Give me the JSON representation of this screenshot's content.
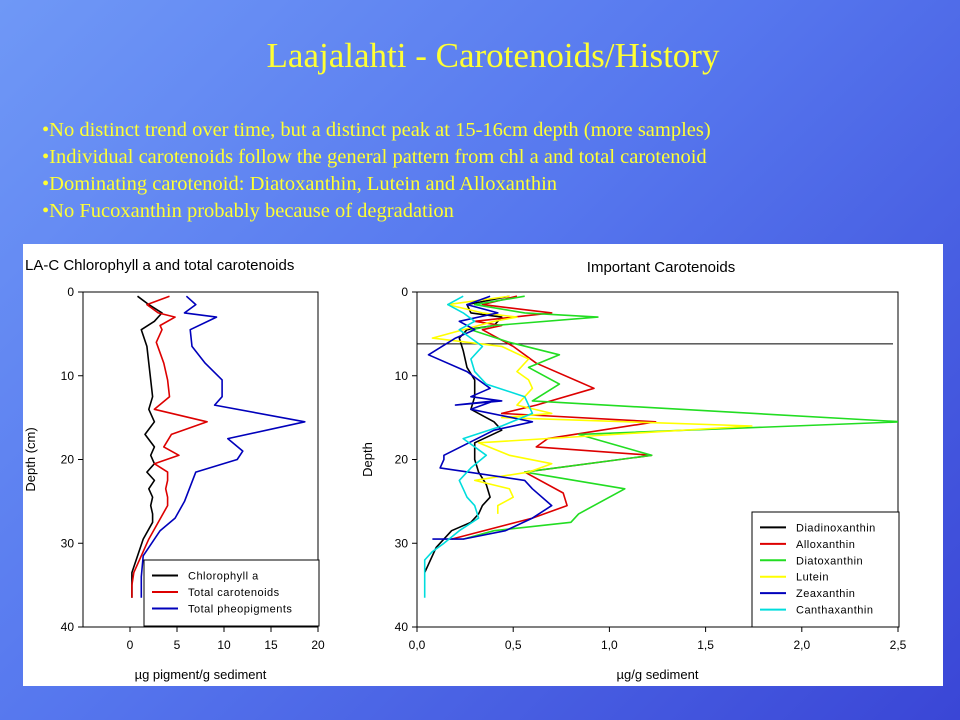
{
  "slide": {
    "title": "Laajalahti - Carotenoids/History",
    "bullets": [
      "•No distinct trend over time, but a distinct peak at 15-16cm depth (more samples)",
      "•Individual carotenoids follow the general pattern from chl a and total carotenoid",
      "•Dominating carotenoid: Diatoxanthin, Lutein and Alloxanthin",
      "•No Fucoxanthin probably because of degradation"
    ]
  },
  "chart_data": [
    {
      "type": "line",
      "orientation": "depth-profile",
      "title": "LA-C Chlorophyll a and total carotenoids",
      "xlabel": "µg pigment/g sediment",
      "ylabel": "Depth (cm)",
      "xlim": [
        -5,
        20
      ],
      "ylim": [
        0,
        40
      ],
      "xticks": [
        0,
        5,
        10,
        15,
        20
      ],
      "yticks": [
        0,
        10,
        20,
        30,
        40
      ],
      "decimal_comma": false,
      "y_inverted": true,
      "grid": false,
      "legend_position": "bottom-right",
      "series": [
        {
          "name": "Chlorophyll a",
          "color": "#000000",
          "x": [
            0.8,
            2.0,
            3.4,
            2.6,
            1.2,
            1.8,
            2.0,
            2.2,
            2.4,
            2.0,
            2.6,
            1.6,
            2.6,
            2.2,
            2.6,
            1.8,
            2.6,
            2.0,
            2.4,
            2.2,
            2.4,
            2.4,
            1.4,
            0.2,
            0.2
          ],
          "y": [
            0.5,
            1.5,
            2.5,
            3.5,
            4.5,
            6.5,
            8.5,
            10.5,
            12.5,
            14.0,
            15.5,
            17.0,
            18.5,
            19.5,
            20.5,
            21.5,
            22.5,
            23.5,
            24.5,
            25.5,
            26.5,
            27.5,
            29.5,
            33.5,
            36.5
          ]
        },
        {
          "name": "Total carotenoids",
          "color": "#dd0000",
          "x": [
            4.2,
            1.8,
            3.0,
            4.8,
            3.2,
            3.4,
            2.8,
            3.6,
            4.0,
            4.2,
            2.6,
            8.2,
            4.4,
            3.6,
            5.2,
            2.6,
            4.0,
            4.0,
            3.8,
            4.0,
            4.0,
            2.0,
            0.4,
            0.2,
            0.2
          ],
          "y": [
            0.5,
            1.5,
            2.5,
            3.0,
            4.0,
            4.5,
            6.0,
            8.5,
            10.5,
            12.5,
            14.0,
            15.5,
            17.0,
            18.5,
            19.5,
            20.5,
            21.5,
            22.5,
            23.5,
            24.5,
            25.5,
            29.5,
            33.5,
            35.0,
            36.5
          ]
        },
        {
          "name": "Total pheopigments",
          "color": "#0000bb",
          "x": [
            6.0,
            7.0,
            5.8,
            9.2,
            6.4,
            6.6,
            8.0,
            9.8,
            9.8,
            9.0,
            18.6,
            10.4,
            12.0,
            11.4,
            7.0,
            5.8,
            4.8,
            3.2,
            1.4,
            1.2,
            1.2
          ],
          "y": [
            0.5,
            1.5,
            2.5,
            3.0,
            4.5,
            6.5,
            8.5,
            10.5,
            12.5,
            13.5,
            15.5,
            17.5,
            19.0,
            20.0,
            21.5,
            25.0,
            27.0,
            28.5,
            31.5,
            34.0,
            36.5
          ]
        }
      ]
    },
    {
      "type": "line",
      "orientation": "depth-profile",
      "title": "Important Carotenoids",
      "xlabel": "µg/g sediment",
      "ylabel": "Depth",
      "xlim": [
        0,
        2.5
      ],
      "ylim": [
        0,
        40
      ],
      "xticks": [
        "0,0",
        "0,5",
        "1,0",
        "1,5",
        "2,0",
        "2,5"
      ],
      "yticks": [
        0,
        10,
        20,
        30,
        40
      ],
      "reference_line_depth": 6.2,
      "y_inverted": true,
      "grid": false,
      "legend_position": "bottom-right",
      "series": [
        {
          "name": "Diadinoxanthin",
          "color": "#000000",
          "x": [
            0.48,
            0.26,
            0.28,
            0.44,
            0.4,
            0.26,
            0.22,
            0.24,
            0.26,
            0.3,
            0.3,
            0.28,
            0.4,
            0.44,
            0.3,
            0.3,
            0.32,
            0.36,
            0.38,
            0.34,
            0.32,
            0.28,
            0.18,
            0.1,
            0.04
          ],
          "y": [
            0.5,
            1.5,
            2.5,
            3.0,
            4.0,
            4.5,
            5.5,
            7.0,
            9.0,
            10.5,
            12.5,
            14.0,
            15.5,
            16.5,
            18.0,
            20.0,
            21.5,
            23.0,
            24.5,
            25.5,
            26.5,
            27.5,
            28.5,
            30.5,
            33.5
          ]
        },
        {
          "name": "Alloxanthin",
          "color": "#dd0000",
          "x": [
            0.52,
            0.34,
            0.7,
            0.3,
            0.44,
            0.34,
            0.5,
            0.62,
            0.92,
            0.62,
            0.44,
            1.24,
            0.68,
            0.62,
            1.22,
            0.56,
            0.76,
            0.78,
            0.6,
            0.18
          ],
          "y": [
            0.5,
            1.5,
            2.5,
            3.5,
            4.0,
            4.5,
            6.5,
            8.5,
            11.5,
            13.5,
            14.5,
            15.5,
            17.5,
            18.5,
            19.5,
            21.5,
            24.0,
            25.5,
            27.0,
            29.5
          ]
        },
        {
          "name": "Diatoxanthin",
          "color": "#22dd22",
          "x": [
            0.56,
            0.3,
            0.56,
            0.94,
            0.4,
            0.28,
            0.48,
            0.74,
            0.58,
            0.74,
            0.6,
            2.52,
            0.84,
            1.22,
            0.56,
            1.08,
            0.84,
            0.8,
            0.4,
            0.24
          ],
          "y": [
            0.5,
            1.5,
            2.5,
            3.0,
            4.0,
            4.5,
            6.0,
            7.5,
            9.0,
            11.0,
            13.0,
            15.5,
            17.0,
            19.5,
            21.5,
            23.5,
            26.5,
            27.5,
            28.5,
            29.5
          ]
        },
        {
          "name": "Lutein",
          "color": "#ffff00",
          "x": [
            0.48,
            0.16,
            0.34,
            0.52,
            0.4,
            0.08,
            0.44,
            0.58,
            0.52,
            0.58,
            0.6,
            0.52,
            0.7,
            0.44,
            1.74,
            0.32,
            0.48,
            0.7,
            0.58,
            0.3,
            0.48,
            0.5,
            0.42,
            0.42
          ],
          "y": [
            0.5,
            1.5,
            2.5,
            3.0,
            3.5,
            5.5,
            6.5,
            8.0,
            9.5,
            10.5,
            11.5,
            13.5,
            14.5,
            15.0,
            16.0,
            18.0,
            19.5,
            20.5,
            21.5,
            22.5,
            23.5,
            24.5,
            25.5,
            26.5
          ]
        },
        {
          "name": "Zeaxanthin",
          "color": "#0000bb",
          "x": [
            0.38,
            0.26,
            0.42,
            0.22,
            0.3,
            0.2,
            0.06,
            0.26,
            0.38,
            0.28,
            0.44,
            0.2,
            0.4,
            0.28,
            0.6,
            0.4,
            0.14,
            0.14,
            0.12,
            0.56,
            0.6,
            0.7,
            0.6,
            0.46,
            0.24,
            0.08
          ],
          "y": [
            0.5,
            1.5,
            2.5,
            3.5,
            4.5,
            5.5,
            7.5,
            9.5,
            11.5,
            12.5,
            13.0,
            13.5,
            13.0,
            14.0,
            15.5,
            16.5,
            19.5,
            20.0,
            21.0,
            22.5,
            23.5,
            25.5,
            27.0,
            28.5,
            29.5,
            29.5
          ]
        },
        {
          "name": "Canthaxanthin",
          "color": "#00dddd",
          "x": [
            0.24,
            0.16,
            0.24,
            0.3,
            0.22,
            0.28,
            0.34,
            0.28,
            0.3,
            0.36,
            0.56,
            0.6,
            0.44,
            0.24,
            0.3,
            0.36,
            0.28,
            0.22,
            0.24,
            0.26,
            0.3,
            0.32,
            0.22,
            0.14,
            0.08,
            0.04,
            0.04,
            0.04
          ],
          "y": [
            0.5,
            1.5,
            2.5,
            3.5,
            4.5,
            5.5,
            6.5,
            8.0,
            9.5,
            11.0,
            12.5,
            14.5,
            16.0,
            17.5,
            18.5,
            19.5,
            21.0,
            22.5,
            23.5,
            24.5,
            25.5,
            27.0,
            28.5,
            30.0,
            31.0,
            32.0,
            34.5,
            36.5
          ]
        }
      ]
    }
  ]
}
